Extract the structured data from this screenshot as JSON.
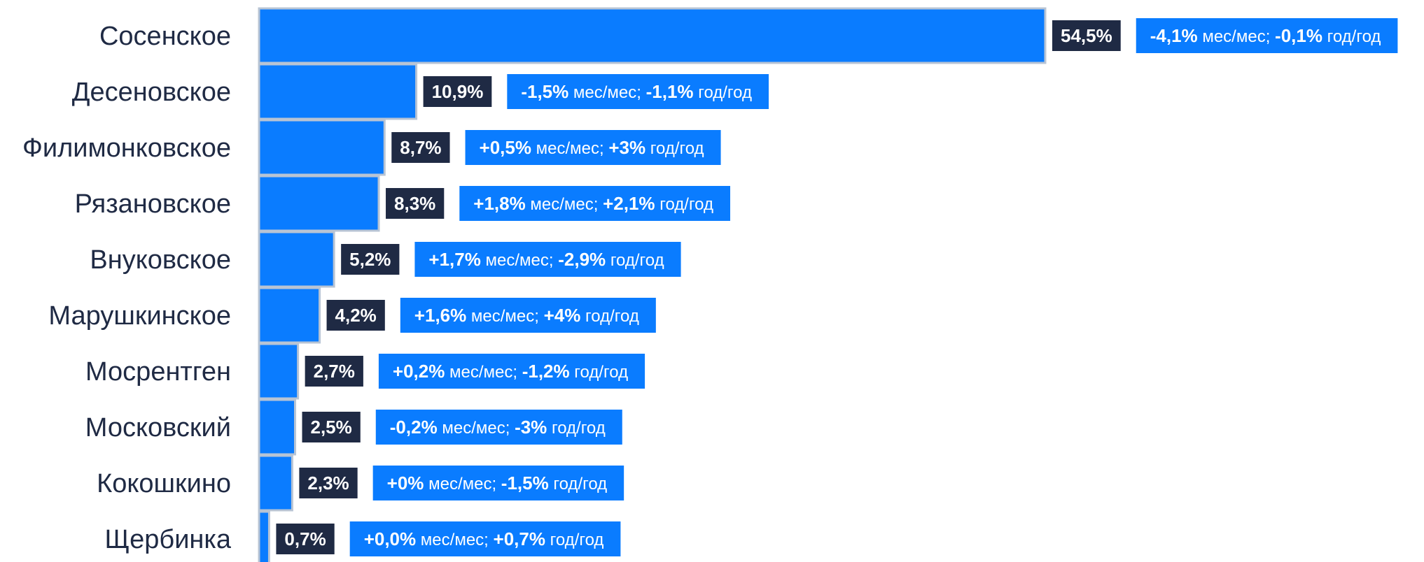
{
  "chart_data": {
    "type": "bar",
    "orientation": "horizontal",
    "categories": [
      "Сосенское",
      "Десеновское",
      "Филимонковское",
      "Рязановское",
      "Внуковское",
      "Марушкинское",
      "Мосрентген",
      "Московский",
      "Кокошкино",
      "Щербинка"
    ],
    "values": [
      54.5,
      10.9,
      8.7,
      8.3,
      5.2,
      4.2,
      2.7,
      2.5,
      2.3,
      0.7
    ],
    "value_labels": [
      "54,5%",
      "10,9%",
      "8,7%",
      "8,3%",
      "5,2%",
      "4,2%",
      "2,7%",
      "2,5%",
      "2,3%",
      "0,7%"
    ],
    "annotations": [
      {
        "mm": "-4,1%",
        "mm_unit": " мес/мес; ",
        "yy": "-0,1%",
        "yy_unit": " год/год"
      },
      {
        "mm": "-1,5%",
        "mm_unit": " мес/мес; ",
        "yy": "-1,1%",
        "yy_unit": " год/год"
      },
      {
        "mm": "+0,5%",
        "mm_unit": " мес/мес; ",
        "yy": "+3%",
        "yy_unit": " год/год"
      },
      {
        "mm": "+1,8%",
        "mm_unit": " мес/мес; ",
        "yy": "+2,1%",
        "yy_unit": " год/год"
      },
      {
        "mm": "+1,7%",
        "mm_unit": " мес/мес; ",
        "yy": "-2,9%",
        "yy_unit": " год/год"
      },
      {
        "mm": "+1,6%",
        "mm_unit": " мес/мес; ",
        "yy": "+4%",
        "yy_unit": " год/год"
      },
      {
        "mm": "+0,2%",
        "mm_unit": " мес/мес; ",
        "yy": "-1,2%",
        "yy_unit": " год/год"
      },
      {
        "mm": "-0,2%",
        "mm_unit": " мес/мес; ",
        "yy": "-3%",
        "yy_unit": " год/год"
      },
      {
        "mm": "+0%",
        "mm_unit": " мес/мес; ",
        "yy": "-1,5%",
        "yy_unit": " год/год"
      },
      {
        "mm": "+0,0%",
        "mm_unit": " мес/мес; ",
        "yy": "+0,7%",
        "yy_unit": " год/год"
      }
    ],
    "title": "",
    "xlabel": "",
    "ylabel": "",
    "xlim": [
      0,
      54.5
    ],
    "grid": false,
    "legend": "none",
    "colors": {
      "bar": "#0a7cff",
      "bar_border": "#b8c4d4",
      "value_label_bg": "#1f2a44",
      "annotation_bg": "#0a7cff",
      "category_text": "#1f2a44"
    }
  }
}
